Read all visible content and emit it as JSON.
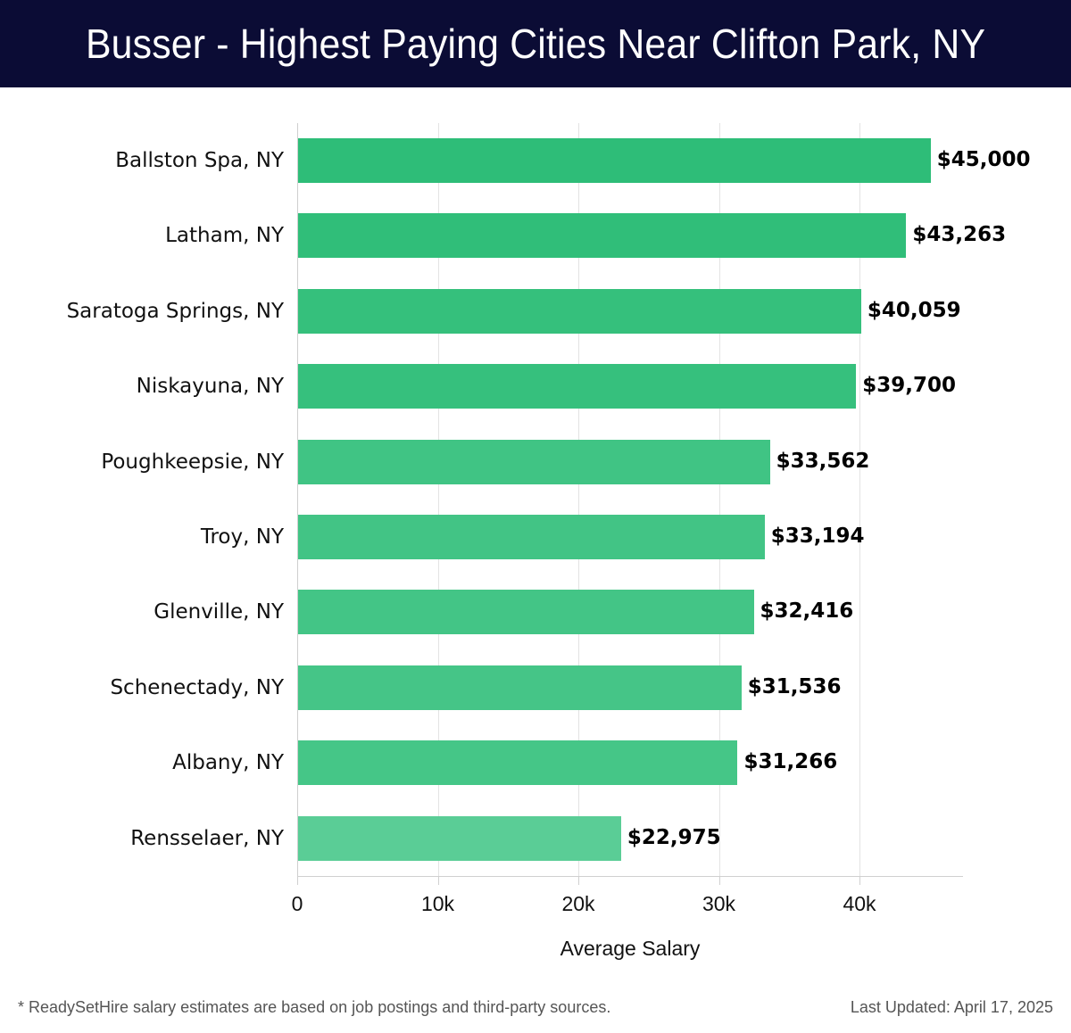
{
  "header": {
    "title": "Busser - Highest Paying Cities Near Clifton Park, NY"
  },
  "axis": {
    "x_title": "Average Salary",
    "ticks": [
      "0",
      "10k",
      "20k",
      "30k",
      "40k"
    ]
  },
  "bars": [
    {
      "label": "Ballston Spa, NY",
      "value_label": "$45,000",
      "value": 45000,
      "color": "#2ebd78"
    },
    {
      "label": "Latham, NY",
      "value_label": "$43,263",
      "value": 43263,
      "color": "#30be79"
    },
    {
      "label": "Saratoga Springs, NY",
      "value_label": "$40,059",
      "value": 40059,
      "color": "#35c07c"
    },
    {
      "label": "Niskayuna, NY",
      "value_label": "$39,700",
      "value": 39700,
      "color": "#36c07d"
    },
    {
      "label": "Poughkeepsie, NY",
      "value_label": "$33,562",
      "value": 33562,
      "color": "#40c484"
    },
    {
      "label": "Troy, NY",
      "value_label": "$33,194",
      "value": 33194,
      "color": "#42c485"
    },
    {
      "label": "Glenville, NY",
      "value_label": "$32,416",
      "value": 32416,
      "color": "#43c586"
    },
    {
      "label": "Schenectady, NY",
      "value_label": "$31,536",
      "value": 31536,
      "color": "#45c587"
    },
    {
      "label": "Albany, NY",
      "value_label": "$31,266",
      "value": 31266,
      "color": "#45c687"
    },
    {
      "label": "Rensselaer, NY",
      "value_label": "$22,975",
      "value": 22975,
      "color": "#5acd96"
    }
  ],
  "footer": {
    "note": "* ReadySetHire salary estimates are based on job postings and third-party sources.",
    "updated": "Last Updated: April 17, 2025"
  },
  "chart_data": {
    "type": "bar",
    "orientation": "horizontal",
    "title": "Busser - Highest Paying Cities Near Clifton Park, NY",
    "categories": [
      "Ballston Spa, NY",
      "Latham, NY",
      "Saratoga Springs, NY",
      "Niskayuna, NY",
      "Poughkeepsie, NY",
      "Troy, NY",
      "Glenville, NY",
      "Schenectady, NY",
      "Albany, NY",
      "Rensselaer, NY"
    ],
    "values": [
      45000,
      43263,
      40059,
      39700,
      33562,
      33194,
      32416,
      31536,
      31266,
      22975
    ],
    "xlabel": "Average Salary",
    "ylabel": "",
    "xlim": [
      0,
      47300
    ],
    "xticks": [
      "0",
      "10k",
      "20k",
      "30k",
      "40k"
    ],
    "grid": true,
    "legend": null
  }
}
